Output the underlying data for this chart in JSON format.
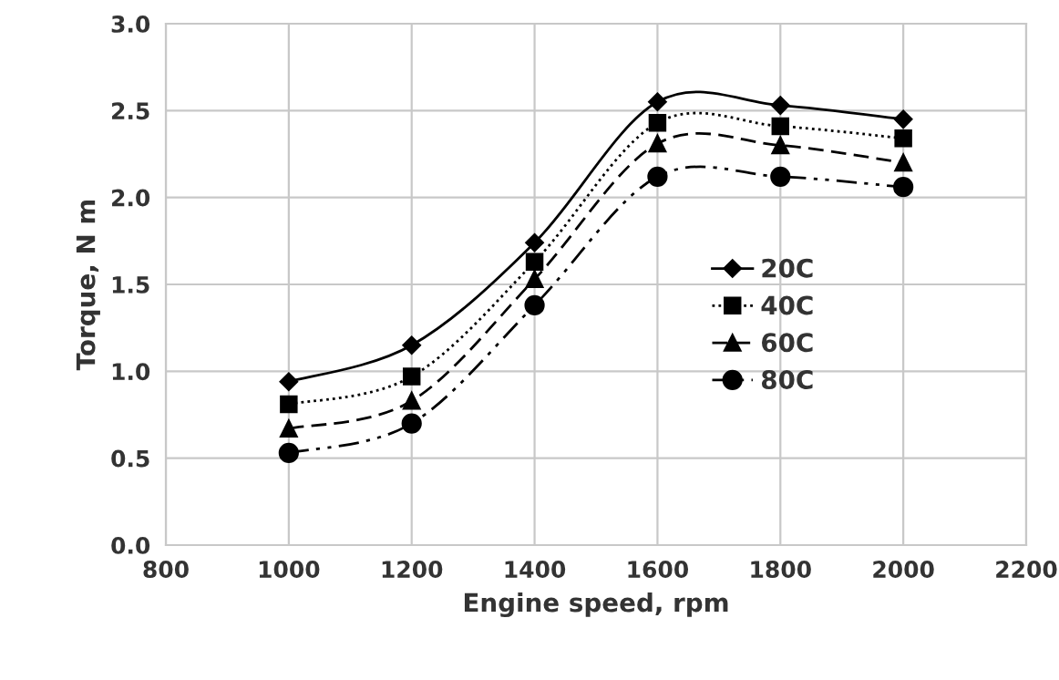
{
  "chart_data": {
    "type": "line",
    "xlabel": "Engine speed, rpm",
    "ylabel": "Torque, N m",
    "x": [
      1000,
      1200,
      1400,
      1600,
      1800,
      2000
    ],
    "series": [
      {
        "name": "20C",
        "color": "#000000",
        "marker": "diamond",
        "line_style": "solid",
        "values": [
          0.94,
          1.15,
          1.74,
          2.55,
          2.53,
          2.45
        ]
      },
      {
        "name": "40C",
        "color": "#000000",
        "marker": "square",
        "line_style": "dotted",
        "values": [
          0.81,
          0.97,
          1.63,
          2.43,
          2.41,
          2.34
        ]
      },
      {
        "name": "60C",
        "color": "#000000",
        "marker": "triangle",
        "line_style": "dashed",
        "values": [
          0.67,
          0.83,
          1.53,
          2.31,
          2.3,
          2.2
        ]
      },
      {
        "name": "80C",
        "color": "#000000",
        "marker": "circle",
        "line_style": "dashdot",
        "values": [
          0.53,
          0.7,
          1.38,
          2.12,
          2.12,
          2.06
        ]
      }
    ],
    "xlim": [
      800,
      2200
    ],
    "xticks": [
      800,
      1000,
      1200,
      1400,
      1600,
      1800,
      2000,
      2200
    ],
    "ylim": [
      0,
      3
    ],
    "yticks": [
      {
        "value": 0,
        "label": "0.0"
      },
      {
        "value": 0.5,
        "label": "0.5"
      },
      {
        "value": 1,
        "label": "1.0"
      },
      {
        "value": 1.5,
        "label": "1.5"
      },
      {
        "value": 2,
        "label": "2.0"
      },
      {
        "value": 2.5,
        "label": "2.5"
      },
      {
        "value": 3,
        "label": "3.0"
      }
    ],
    "grid": true,
    "legend": "right"
  }
}
